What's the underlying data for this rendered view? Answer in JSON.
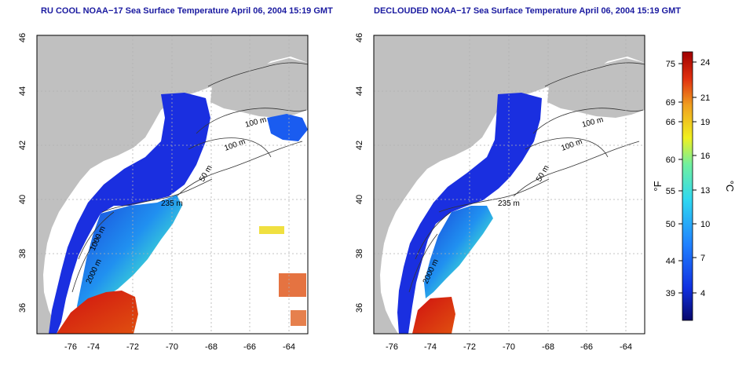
{
  "left_panel": {
    "title": "RU COOL NOAA−17 Sea Surface Temperature April 06, 2004 15:19 GMT",
    "x_ticks": [
      "-76",
      "-74",
      "-72",
      "-70",
      "-68",
      "-66",
      "-64"
    ],
    "y_ticks": [
      "36",
      "38",
      "40",
      "42",
      "44",
      "46"
    ],
    "contour_labels": [
      "100 m",
      "100 m",
      "50 m",
      "235 m",
      "2000 m",
      "1000 m"
    ]
  },
  "right_panel": {
    "title": "DECLOUDED NOAA−17 Sea Surface Temperature April 06, 2004 15:19 GMT",
    "x_ticks": [
      "-76",
      "-74",
      "-72",
      "-70",
      "-68",
      "-66",
      "-64"
    ],
    "y_ticks": [
      "36",
      "38",
      "40",
      "42",
      "44",
      "46"
    ],
    "contour_labels": [
      "100 m",
      "100 m",
      "50 m",
      "235 m",
      "2000 m"
    ]
  },
  "colorbar": {
    "fahrenheit_label": "°F",
    "celsius_label": "°C",
    "fahrenheit_ticks": [
      "75",
      "69",
      "66",
      "60",
      "55",
      "50",
      "44",
      "39"
    ],
    "celsius_ticks": [
      "24",
      "21",
      "19",
      "16",
      "13",
      "10",
      "7",
      "4"
    ],
    "colors": [
      "#08086b",
      "#1030e0",
      "#2080ff",
      "#30d8f0",
      "#70f0a0",
      "#f0f020",
      "#f0a020",
      "#e03010",
      "#a00000"
    ]
  },
  "map": {
    "land_color": "#c0c0c0",
    "ocean_color": "#ffffff",
    "lat_range": [
      35,
      46
    ],
    "lon_range": [
      -77,
      -63
    ]
  }
}
